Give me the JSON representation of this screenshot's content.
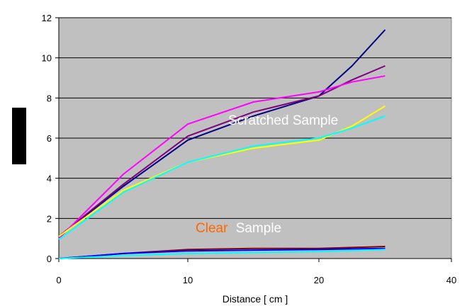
{
  "chart_data": {
    "type": "line",
    "xlabel": "Distance [ cm ]",
    "ylabel": "",
    "xlim": [
      0,
      40
    ],
    "ylim": [
      0,
      12
    ],
    "x_ticks": [
      0,
      10,
      20,
      40
    ],
    "x_tick_labels": [
      "0",
      "10",
      "20",
      "40"
    ],
    "y_ticks": [
      0,
      2,
      4,
      6,
      8,
      10,
      12
    ],
    "y_tick_labels": [
      "0",
      "2",
      "4",
      "6",
      "8",
      "10",
      "12"
    ],
    "x_tick_positions_note": "",
    "grid": "horizontal",
    "background_color": "#c0c0c0",
    "annotations": {
      "scratched": {
        "text": "Scratched Sample",
        "color": "#ffffff"
      },
      "clear_word": {
        "text": "Clear",
        "color": "#ff6600"
      },
      "sample_word": {
        "text": "Sample",
        "color": "#ffffff"
      }
    },
    "series": [
      {
        "color": "#000080",
        "points": [
          [
            0,
            1.1
          ],
          [
            5,
            3.6
          ],
          [
            10,
            5.9
          ],
          [
            15,
            7.1
          ],
          [
            20,
            8.1
          ],
          [
            25,
            9.6
          ],
          [
            30,
            11.4
          ]
        ]
      },
      {
        "color": "#800080",
        "points": [
          [
            0,
            1.1
          ],
          [
            5,
            3.7
          ],
          [
            10,
            6.1
          ],
          [
            15,
            7.3
          ],
          [
            20,
            8.1
          ],
          [
            25,
            8.9
          ],
          [
            30,
            9.6
          ]
        ]
      },
      {
        "color": "#ff00ff",
        "points": [
          [
            0,
            1.0
          ],
          [
            5,
            4.2
          ],
          [
            10,
            6.7
          ],
          [
            15,
            7.8
          ],
          [
            20,
            8.3
          ],
          [
            25,
            8.8
          ],
          [
            30,
            9.1
          ]
        ]
      },
      {
        "color": "#ffff00",
        "points": [
          [
            0,
            1.1
          ],
          [
            5,
            3.4
          ],
          [
            10,
            4.8
          ],
          [
            15,
            5.5
          ],
          [
            20,
            5.9
          ],
          [
            25,
            6.6
          ],
          [
            30,
            7.6
          ]
        ]
      },
      {
        "color": "#00ffff",
        "points": [
          [
            0,
            0.95
          ],
          [
            5,
            3.3
          ],
          [
            10,
            4.8
          ],
          [
            15,
            5.6
          ],
          [
            20,
            6.0
          ],
          [
            25,
            6.5
          ],
          [
            30,
            7.1
          ]
        ]
      },
      {
        "color": "#800000",
        "points": [
          [
            0,
            0.0
          ],
          [
            5,
            0.25
          ],
          [
            10,
            0.45
          ],
          [
            15,
            0.5
          ],
          [
            20,
            0.5
          ],
          [
            25,
            0.55
          ],
          [
            30,
            0.6
          ]
        ]
      },
      {
        "color": "#0000ff",
        "points": [
          [
            0,
            0.0
          ],
          [
            5,
            0.25
          ],
          [
            10,
            0.38
          ],
          [
            15,
            0.42
          ],
          [
            20,
            0.45
          ],
          [
            25,
            0.48
          ],
          [
            30,
            0.5
          ]
        ]
      },
      {
        "color": "#00ffff",
        "points": [
          [
            0,
            0.0
          ],
          [
            5,
            0.15
          ],
          [
            10,
            0.25
          ],
          [
            15,
            0.3
          ],
          [
            20,
            0.35
          ],
          [
            25,
            0.4
          ],
          [
            30,
            0.45
          ]
        ]
      }
    ]
  }
}
